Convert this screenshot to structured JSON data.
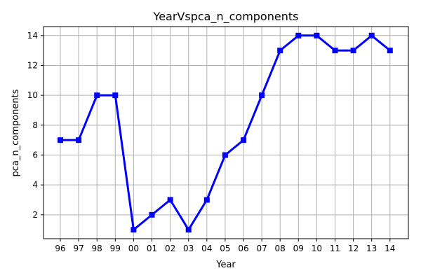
{
  "chart_data": {
    "type": "line",
    "title": "YearVspca_n_components",
    "xlabel": "Year",
    "ylabel": "pca_n_components",
    "categories": [
      "96",
      "97",
      "98",
      "99",
      "00",
      "01",
      "02",
      "03",
      "04",
      "05",
      "06",
      "07",
      "08",
      "09",
      "10",
      "11",
      "12",
      "13",
      "14"
    ],
    "series": [
      {
        "values": [
          7,
          7,
          10,
          10,
          1,
          2,
          3,
          1,
          3,
          6,
          7,
          10,
          13,
          14,
          14,
          13,
          13,
          14,
          13
        ],
        "color": "#0000ff",
        "marker": "square"
      }
    ],
    "ylim": [
      0.4,
      14.6
    ],
    "yticks": [
      2,
      4,
      6,
      8,
      10,
      12,
      14
    ],
    "grid": true
  }
}
